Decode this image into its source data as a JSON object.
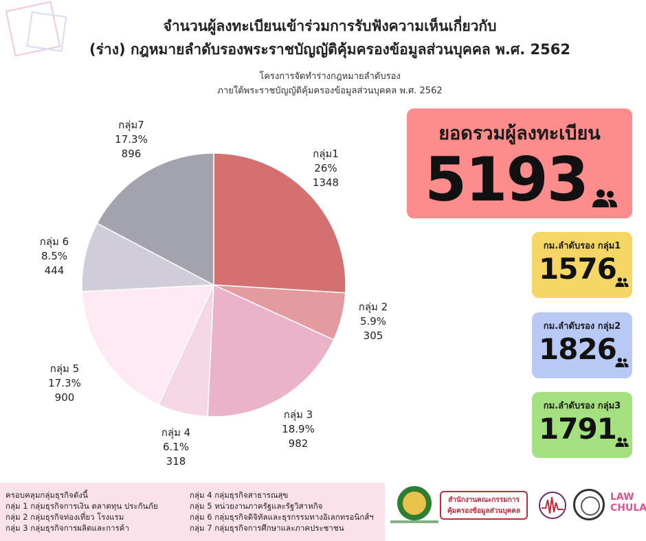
{
  "title_lines": [
    "จำนวนผู้ลงทะเบียนเข้าร่วมการรับฟังความเห็นเกี่ยวกับ",
    "(ร่าง) กฎหมายลำดับรองพระราชบัญญัติคุ้มครองข้อมูลส่วนบุคคล พ.ศ. 2562"
  ],
  "subtitle_lines": [
    "โครงการจัดทำร่างกฎหมายลำดับรอง",
    "ภายใต้พระราชบัญญัติคุ้มครองข้อมูลส่วนบุคคล พ.ศ. 2562"
  ],
  "chart_data": {
    "type": "pie",
    "slices": [
      {
        "label": "กลุ่ม1",
        "percent": "26%",
        "value": 1348,
        "color": "#d4706f"
      },
      {
        "label": "กลุ่ม 2",
        "percent": "5.9%",
        "value": 305,
        "color": "#e49b9f"
      },
      {
        "label": "กลุ่ม 3",
        "percent": "18.9%",
        "value": 982,
        "color": "#ebb3ca"
      },
      {
        "label": "กลุ่ม 4",
        "percent": "6.1%",
        "value": 318,
        "color": "#f4d6e5"
      },
      {
        "label": "กลุ่ม 5",
        "percent": "17.3%",
        "value": 900,
        "color": "#fde9f4"
      },
      {
        "label": "กลุ่ม 6",
        "percent": "8.5%",
        "value": 444,
        "color": "#d0cdd9"
      },
      {
        "label": "กลุ่ม7",
        "percent": "17.3%",
        "value": 896,
        "color": "#a2a3ad"
      }
    ]
  },
  "total": {
    "title": "ยอดรวมผู้ลงทะเบียน",
    "value": "5193",
    "icon": "people-icon"
  },
  "group_cards": [
    {
      "title": "กม.ลำดับรอง กลุ่ม1",
      "value": "1576",
      "color": "#f5d564"
    },
    {
      "title": "กม.ลำดับรอง กลุ่ม2",
      "value": "1826",
      "color": "#b9c9f5"
    },
    {
      "title": "กม.ลำดับรอง กลุ่ม3",
      "value": "1791",
      "color": "#a4e07f"
    }
  ],
  "footer": {
    "col1": [
      "ครอบคลุมกลุ่มธุรกิจดังนี้",
      "กลุ่ม 1 กลุ่มธุรกิจการเงิน ตลาดทุน ประกันภัย",
      "กลุ่ม 2 กลุ่มธุรกิจท่องเที่ยว โรงแรม",
      "กลุ่ม 3 กลุ่มธุรกิจการผลิตและการค้า"
    ],
    "col2": [
      "กลุ่ม 4 กลุ่มธุรกิจสาธารณสุข",
      "กลุ่ม 5 หน่วยงานภาครัฐและรัฐวิสาหกิจ",
      "กลุ่ม 6 กลุ่มธุรกิจดิจิทัลและธุรกรรมทางอิเลกทรอนิกส์ฯ",
      "กลุ่ม 7 กลุ่มธุรกิจการศึกษาและภาคประชาชน"
    ]
  },
  "logos": {
    "pdpc_lines": [
      "สำนักงานคณะกรรมการ",
      "คุ้มครองข้อมูลส่วนบุคคล"
    ],
    "law_lines": [
      "LAW",
      "CHULA"
    ]
  }
}
